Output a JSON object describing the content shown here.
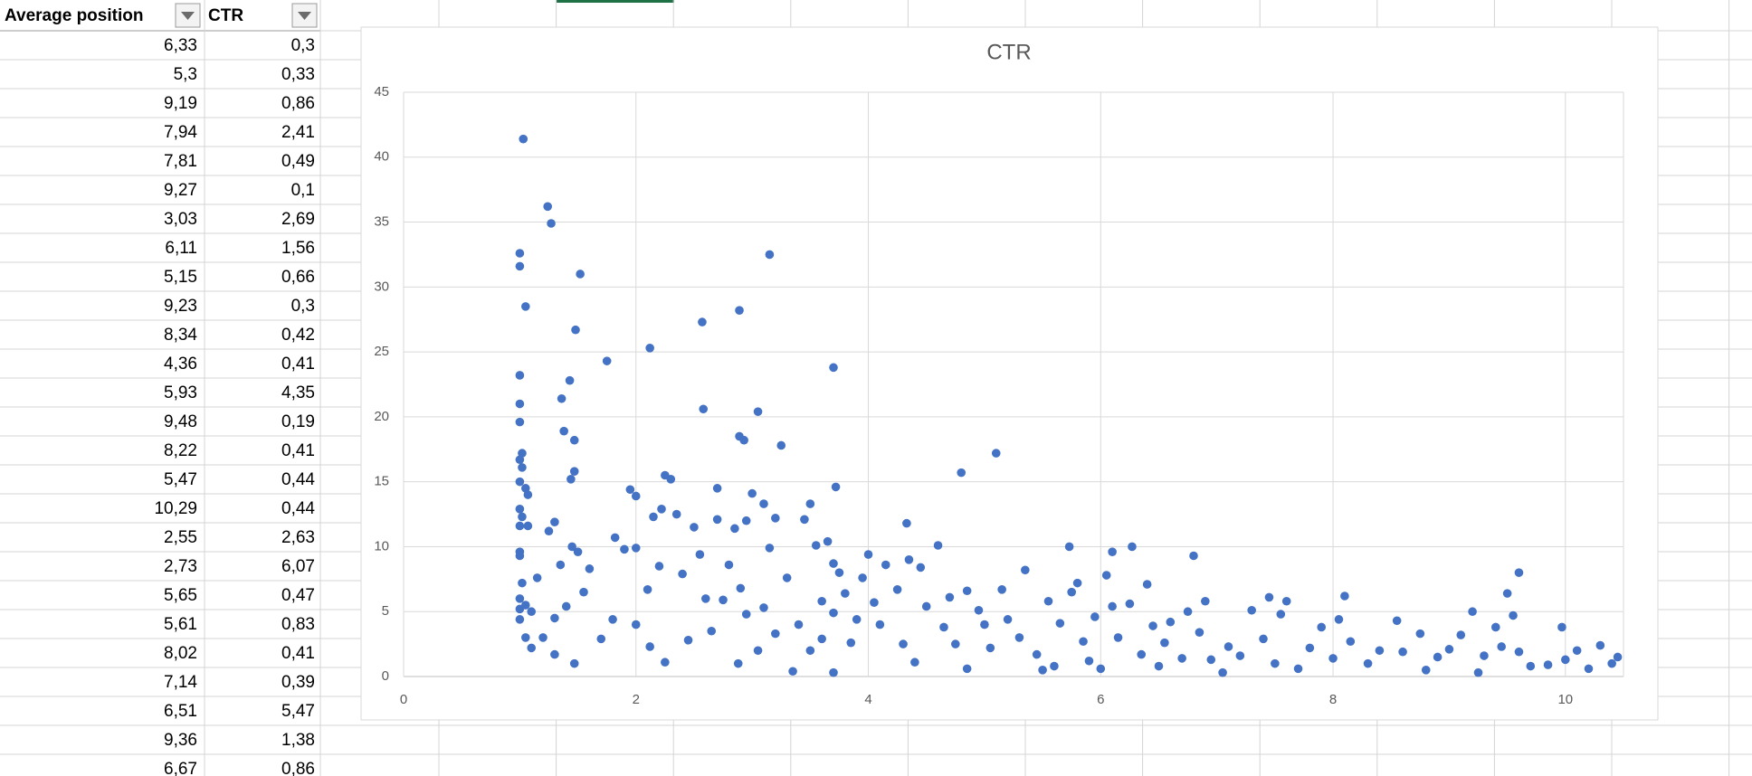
{
  "table": {
    "headers": [
      "Average position",
      "CTR"
    ],
    "rows": [
      [
        "6,33",
        "0,3"
      ],
      [
        "5,3",
        "0,33"
      ],
      [
        "9,19",
        "0,86"
      ],
      [
        "7,94",
        "2,41"
      ],
      [
        "7,81",
        "0,49"
      ],
      [
        "9,27",
        "0,1"
      ],
      [
        "3,03",
        "2,69"
      ],
      [
        "6,11",
        "1,56"
      ],
      [
        "5,15",
        "0,66"
      ],
      [
        "9,23",
        "0,3"
      ],
      [
        "8,34",
        "0,42"
      ],
      [
        "4,36",
        "0,41"
      ],
      [
        "5,93",
        "4,35"
      ],
      [
        "9,48",
        "0,19"
      ],
      [
        "8,22",
        "0,41"
      ],
      [
        "5,47",
        "0,44"
      ],
      [
        "10,29",
        "0,44"
      ],
      [
        "2,55",
        "2,63"
      ],
      [
        "2,73",
        "6,07"
      ],
      [
        "5,65",
        "0,47"
      ],
      [
        "5,61",
        "0,83"
      ],
      [
        "8,02",
        "0,41"
      ],
      [
        "7,14",
        "0,39"
      ],
      [
        "6,51",
        "5,47"
      ],
      [
        "9,36",
        "1,38"
      ],
      [
        "6,67",
        "0,86"
      ]
    ]
  },
  "chart_data": {
    "type": "scatter",
    "title": "CTR",
    "color": "#4472c4",
    "grid": true,
    "xlim": [
      0,
      10.5
    ],
    "xticks": [
      0,
      2,
      4,
      6,
      8,
      10
    ],
    "ylim": [
      0,
      45
    ],
    "yticks": [
      0,
      5,
      10,
      15,
      20,
      25,
      30,
      35,
      40,
      45
    ],
    "x": [
      1.03,
      1.0,
      1.0,
      1.05,
      1.24,
      1.27,
      1.52,
      1.48,
      1.0,
      1.36,
      1.43,
      1.0,
      1.0,
      1.38,
      1.47,
      1.0,
      1.02,
      1.02,
      1.0,
      1.05,
      1.07,
      1.47,
      1.44,
      1.0,
      1.02,
      1.0,
      1.07,
      1.0,
      1.0,
      1.02,
      1.0,
      1.0,
      1.0,
      1.05,
      1.1,
      1.05,
      1.1,
      1.15,
      1.75,
      2.12,
      2.57,
      2.89,
      3.15,
      2.58,
      2.89,
      2.93,
      3.05,
      3.25,
      3.7,
      3.72,
      4.8,
      5.1,
      4.33,
      5.73,
      6.1,
      6.27,
      6.8,
      9.6,
      6.05,
      8.1,
      9.5,
      9.2,
      9.97,
      8.55,
      1.3,
      1.25,
      1.45,
      1.5,
      1.6,
      1.35,
      1.55,
      1.4,
      1.3,
      1.2,
      1.3,
      1.47,
      1.7,
      1.8,
      1.82,
      1.9,
      2.0,
      1.95,
      2.0,
      2.22,
      2.25,
      2.3,
      2.35,
      2.2,
      2.1,
      2.0,
      2.12,
      2.25,
      2.4,
      2.5,
      2.55,
      2.6,
      2.45,
      2.7,
      2.7,
      2.75,
      2.8,
      2.85,
      2.9,
      2.95,
      2.95,
      3.0,
      3.1,
      3.15,
      3.2,
      3.1,
      3.05,
      3.2,
      2.88,
      3.3,
      3.4,
      3.45,
      3.5,
      3.55,
      3.6,
      3.65,
      3.7,
      3.7,
      3.75,
      3.8,
      3.6,
      3.7,
      3.85,
      3.9,
      3.95,
      4.0,
      4.1,
      4.15,
      4.25,
      4.3,
      4.35,
      4.45,
      4.5,
      4.4,
      4.6,
      4.65,
      4.7,
      4.75,
      4.85,
      4.85,
      4.95,
      5.05,
      5.15,
      5.2,
      5.3,
      5.35,
      5.45,
      5.55,
      5.6,
      5.65,
      5.75,
      5.8,
      5.85,
      5.95,
      6.0,
      6.1,
      6.15,
      6.25,
      6.35,
      6.4,
      6.45,
      6.55,
      6.6,
      6.7,
      6.75,
      6.85,
      6.9,
      6.95,
      7.05,
      7.1,
      7.2,
      7.3,
      7.4,
      7.45,
      7.5,
      7.55,
      7.6,
      7.7,
      7.8,
      7.9,
      8.0,
      8.05,
      8.15,
      8.3,
      8.4,
      8.6,
      8.75,
      8.8,
      8.9,
      9.0,
      9.1,
      9.25,
      9.3,
      9.4,
      9.45,
      9.55,
      9.6,
      9.7,
      9.85,
      10.0,
      10.1,
      10.2,
      10.3,
      10.4,
      10.45,
      3.35,
      3.5,
      4.05,
      5.5,
      6.5,
      5.0,
      2.65,
      2.15,
      5.9
    ],
    "values": [
      41.4,
      32.6,
      31.6,
      28.5,
      36.2,
      34.9,
      31.0,
      26.7,
      23.2,
      21.4,
      22.8,
      21.0,
      19.6,
      18.9,
      18.2,
      16.7,
      17.2,
      16.1,
      15.0,
      14.5,
      14.0,
      15.8,
      15.2,
      12.9,
      12.3,
      11.6,
      11.6,
      9.6,
      9.3,
      7.2,
      6.0,
      5.2,
      4.4,
      3.0,
      2.2,
      5.5,
      5.0,
      7.6,
      24.3,
      25.3,
      27.3,
      28.2,
      32.5,
      20.6,
      18.5,
      18.2,
      20.4,
      17.8,
      23.8,
      14.6,
      15.7,
      17.2,
      11.8,
      10.0,
      9.6,
      10.0,
      9.3,
      8.0,
      7.8,
      6.2,
      6.4,
      5.0,
      3.8,
      4.3,
      11.9,
      11.2,
      10.0,
      9.6,
      8.3,
      8.6,
      6.5,
      5.4,
      4.5,
      3.0,
      1.7,
      1.0,
      2.9,
      4.4,
      10.7,
      9.8,
      9.9,
      14.4,
      13.9,
      12.9,
      15.5,
      15.2,
      12.5,
      8.5,
      6.7,
      4.0,
      2.3,
      1.1,
      7.9,
      11.5,
      9.4,
      6.0,
      2.8,
      14.5,
      12.1,
      5.9,
      8.6,
      11.4,
      6.8,
      4.8,
      12.0,
      14.1,
      13.3,
      9.9,
      12.2,
      5.3,
      2.0,
      3.3,
      1.0,
      7.6,
      4.0,
      12.1,
      13.3,
      10.1,
      5.8,
      10.4,
      8.7,
      4.9,
      8.0,
      6.4,
      2.9,
      0.3,
      2.6,
      4.4,
      7.6,
      9.4,
      4.0,
      8.6,
      6.7,
      2.5,
      9.0,
      8.4,
      5.4,
      1.1,
      10.1,
      3.8,
      6.1,
      2.5,
      6.6,
      0.6,
      5.1,
      2.2,
      6.7,
      4.4,
      3.0,
      8.2,
      1.7,
      5.8,
      0.8,
      4.1,
      6.5,
      7.2,
      2.7,
      4.6,
      0.6,
      5.4,
      3.0,
      5.6,
      1.7,
      7.1,
      3.9,
      2.6,
      4.2,
      1.4,
      5.0,
      3.4,
      5.8,
      1.3,
      0.3,
      2.3,
      1.6,
      5.1,
      2.9,
      6.1,
      1.0,
      4.8,
      5.8,
      0.6,
      2.2,
      3.8,
      1.4,
      4.4,
      2.7,
      1.0,
      2.0,
      1.9,
      3.3,
      0.5,
      1.5,
      2.1,
      3.2,
      0.3,
      1.6,
      3.8,
      2.3,
      4.7,
      1.9,
      0.8,
      0.9,
      1.3,
      2.0,
      0.6,
      2.4,
      1.0,
      1.5,
      0.4,
      2.0,
      5.7,
      0.5,
      0.8,
      4.0,
      3.5,
      12.3,
      1.2
    ]
  }
}
